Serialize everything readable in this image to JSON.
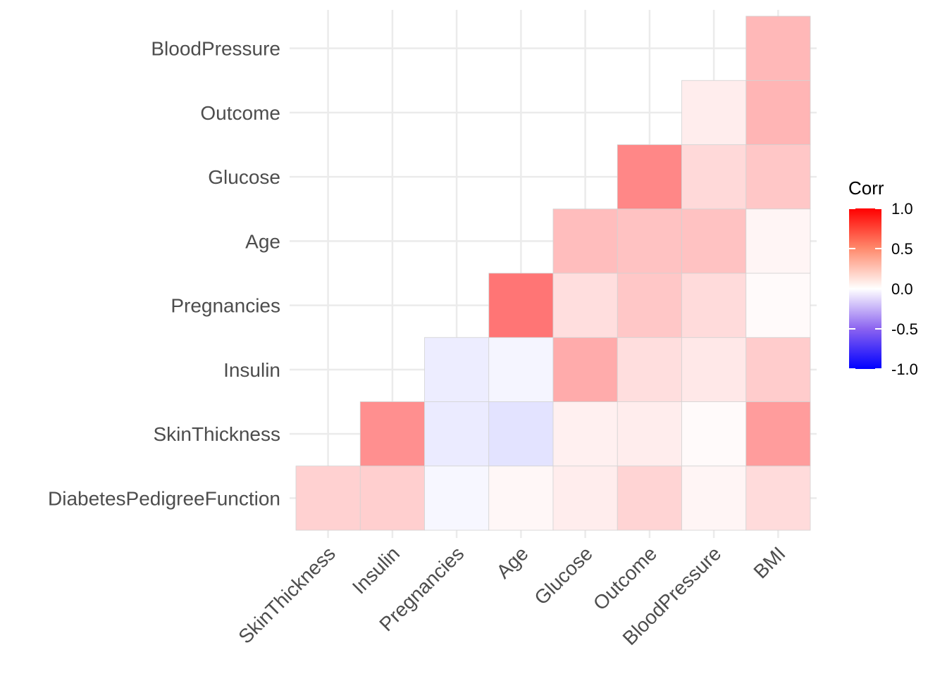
{
  "chart_data": {
    "type": "heatmap",
    "title": "",
    "xlabel": "",
    "ylabel": "",
    "x_categories": [
      "SkinThickness",
      "Insulin",
      "Pregnancies",
      "Age",
      "Glucose",
      "Outcome",
      "BloodPressure",
      "BMI"
    ],
    "y_categories": [
      "DiabetesPedigreeFunction",
      "SkinThickness",
      "Insulin",
      "Pregnancies",
      "Age",
      "Glucose",
      "Outcome",
      "BloodPressure"
    ],
    "cells": [
      {
        "x": "SkinThickness",
        "y": "DiabetesPedigreeFunction",
        "value": 0.18
      },
      {
        "x": "Insulin",
        "y": "DiabetesPedigreeFunction",
        "value": 0.19
      },
      {
        "x": "Pregnancies",
        "y": "DiabetesPedigreeFunction",
        "value": -0.03
      },
      {
        "x": "Age",
        "y": "DiabetesPedigreeFunction",
        "value": 0.03
      },
      {
        "x": "Glucose",
        "y": "DiabetesPedigreeFunction",
        "value": 0.07
      },
      {
        "x": "Outcome",
        "y": "DiabetesPedigreeFunction",
        "value": 0.17
      },
      {
        "x": "BloodPressure",
        "y": "DiabetesPedigreeFunction",
        "value": 0.04
      },
      {
        "x": "BMI",
        "y": "DiabetesPedigreeFunction",
        "value": 0.14
      },
      {
        "x": "Insulin",
        "y": "SkinThickness",
        "value": 0.44
      },
      {
        "x": "Pregnancies",
        "y": "SkinThickness",
        "value": -0.08
      },
      {
        "x": "Age",
        "y": "SkinThickness",
        "value": -0.11
      },
      {
        "x": "Glucose",
        "y": "SkinThickness",
        "value": 0.06
      },
      {
        "x": "Outcome",
        "y": "SkinThickness",
        "value": 0.07
      },
      {
        "x": "BloodPressure",
        "y": "SkinThickness",
        "value": 0.02
      },
      {
        "x": "BMI",
        "y": "SkinThickness",
        "value": 0.39
      },
      {
        "x": "Pregnancies",
        "y": "Insulin",
        "value": -0.07
      },
      {
        "x": "Age",
        "y": "Insulin",
        "value": -0.04
      },
      {
        "x": "Glucose",
        "y": "Insulin",
        "value": 0.33
      },
      {
        "x": "Outcome",
        "y": "Insulin",
        "value": 0.13
      },
      {
        "x": "BloodPressure",
        "y": "Insulin",
        "value": 0.09
      },
      {
        "x": "BMI",
        "y": "Insulin",
        "value": 0.2
      },
      {
        "x": "Age",
        "y": "Pregnancies",
        "value": 0.54
      },
      {
        "x": "Glucose",
        "y": "Pregnancies",
        "value": 0.13
      },
      {
        "x": "Outcome",
        "y": "Pregnancies",
        "value": 0.22
      },
      {
        "x": "BloodPressure",
        "y": "Pregnancies",
        "value": 0.14
      },
      {
        "x": "BMI",
        "y": "Pregnancies",
        "value": 0.02
      },
      {
        "x": "Glucose",
        "y": "Age",
        "value": 0.26
      },
      {
        "x": "Outcome",
        "y": "Age",
        "value": 0.24
      },
      {
        "x": "BloodPressure",
        "y": "Age",
        "value": 0.24
      },
      {
        "x": "BMI",
        "y": "Age",
        "value": 0.04
      },
      {
        "x": "Outcome",
        "y": "Glucose",
        "value": 0.47
      },
      {
        "x": "BloodPressure",
        "y": "Glucose",
        "value": 0.15
      },
      {
        "x": "BMI",
        "y": "Glucose",
        "value": 0.22
      },
      {
        "x": "BloodPressure",
        "y": "Outcome",
        "value": 0.07
      },
      {
        "x": "BMI",
        "y": "Outcome",
        "value": 0.29
      },
      {
        "x": "BMI",
        "y": "BloodPressure",
        "value": 0.28
      }
    ],
    "color_scale": {
      "low": "#0000ff",
      "mid": "#ffffff",
      "high": "#ff0000",
      "limits": [
        -1,
        1
      ]
    },
    "legend": {
      "title": "Corr",
      "position": "right",
      "labels": [
        "1.0",
        "0.5",
        "0.0",
        "-0.5",
        "-1.0"
      ],
      "values": [
        1.0,
        0.5,
        0.0,
        -0.5,
        -1.0
      ]
    },
    "grid": true
  }
}
